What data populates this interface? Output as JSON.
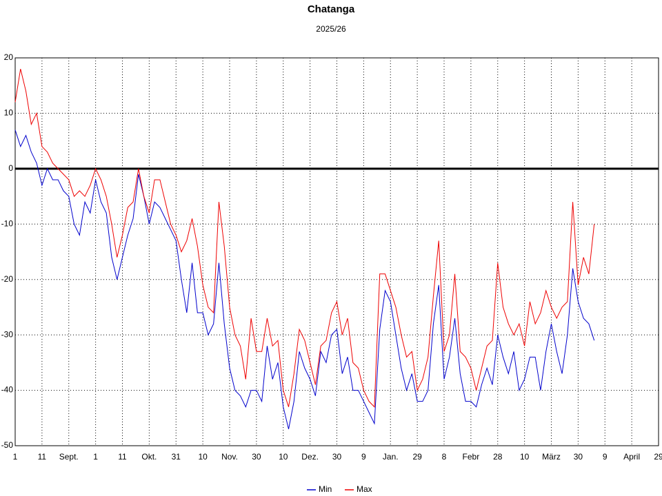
{
  "chart_data": {
    "type": "line",
    "title": "Chatanga",
    "subtitle": "2025/26",
    "x": [
      0,
      2,
      4,
      6,
      8,
      10,
      12,
      14,
      16,
      18,
      20,
      22,
      24,
      26,
      28,
      30,
      32,
      34,
      36,
      38,
      40,
      42,
      44,
      46,
      48,
      50,
      52,
      54,
      56,
      58,
      60,
      62,
      64,
      66,
      68,
      70,
      72,
      74,
      76,
      78,
      80,
      82,
      84,
      86,
      88,
      90,
      92,
      94,
      96,
      98,
      100,
      102,
      104,
      106,
      108,
      110,
      112,
      114,
      116,
      118,
      120,
      122,
      124,
      126,
      128,
      130,
      132,
      134,
      136,
      138,
      140,
      142,
      144,
      146,
      148,
      150,
      152,
      154,
      156,
      158,
      160,
      162,
      164,
      166,
      168,
      170,
      172,
      174,
      176,
      178,
      180,
      182,
      184,
      186,
      188,
      190,
      192,
      194,
      196,
      198,
      200,
      202,
      204,
      206,
      208,
      210,
      212,
      214,
      216
    ],
    "series": [
      {
        "name": "Min",
        "color": "#0000cc",
        "values": [
          7,
          4,
          6,
          3,
          1,
          -3,
          0,
          -2,
          -2,
          -4,
          -5,
          -10,
          -12,
          -6,
          -8,
          -2,
          -6,
          -8,
          -16,
          -20,
          -16,
          -12,
          -9,
          -1,
          -5,
          -10,
          -6,
          -7,
          -9,
          -11,
          -13,
          -20,
          -26,
          -17,
          -26,
          -26,
          -30,
          -28,
          -17,
          -28,
          -36,
          -40,
          -41,
          -43,
          -40,
          -40,
          -42,
          -32,
          -38,
          -35,
          -43,
          -47,
          -42,
          -33,
          -36,
          -38,
          -41,
          -33,
          -35,
          -30,
          -29,
          -37,
          -34,
          -40,
          -40,
          -42,
          -44,
          -46,
          -29,
          -22,
          -24,
          -30,
          -36,
          -40,
          -37,
          -42,
          -42,
          -40,
          -28,
          -21,
          -38,
          -34,
          -27,
          -37,
          -42,
          -42,
          -43,
          -39,
          -36,
          -39,
          -30,
          -34,
          -37,
          -33,
          -40,
          -38,
          -34,
          -34,
          -40,
          -33,
          -28,
          -33,
          -37,
          -30,
          -18,
          -24,
          -27,
          -28,
          -31
        ]
      },
      {
        "name": "Max",
        "color": "#ee0000",
        "values": [
          12,
          18,
          14,
          8,
          10,
          4,
          3,
          1,
          0,
          -1,
          -2,
          -5,
          -4,
          -5,
          -3,
          0,
          -2,
          -5,
          -10,
          -16,
          -12,
          -7,
          -6,
          0,
          -5,
          -8,
          -2,
          -2,
          -6,
          -10,
          -12,
          -15,
          -13,
          -9,
          -14,
          -21,
          -25,
          -26,
          -6,
          -14,
          -25,
          -30,
          -32,
          -38,
          -27,
          -33,
          -33,
          -27,
          -32,
          -31,
          -40,
          -43,
          -37,
          -29,
          -31,
          -35,
          -39,
          -32,
          -31,
          -26,
          -24,
          -30,
          -27,
          -35,
          -36,
          -40,
          -42,
          -43,
          -19,
          -19,
          -22,
          -25,
          -30,
          -34,
          -33,
          -40,
          -38,
          -34,
          -23,
          -13,
          -33,
          -30,
          -19,
          -33,
          -34,
          -36,
          -40,
          -36,
          -32,
          -31,
          -17,
          -25,
          -28,
          -30,
          -28,
          -32,
          -24,
          -28,
          -26,
          -22,
          -25,
          -27,
          -25,
          -24,
          -6,
          -21,
          -16,
          -19,
          -10
        ]
      }
    ],
    "xlim": [
      0,
      240
    ],
    "xticks": [
      {
        "value": 0,
        "label": "1"
      },
      {
        "value": 10,
        "label": "11"
      },
      {
        "value": 20,
        "label": "Sept."
      },
      {
        "value": 30,
        "label": "1"
      },
      {
        "value": 40,
        "label": "11"
      },
      {
        "value": 50,
        "label": "Okt."
      },
      {
        "value": 60,
        "label": "31"
      },
      {
        "value": 70,
        "label": "10"
      },
      {
        "value": 80,
        "label": "Nov."
      },
      {
        "value": 90,
        "label": "30"
      },
      {
        "value": 100,
        "label": "10"
      },
      {
        "value": 110,
        "label": "Dez."
      },
      {
        "value": 120,
        "label": "30"
      },
      {
        "value": 130,
        "label": "9"
      },
      {
        "value": 140,
        "label": "Jan."
      },
      {
        "value": 150,
        "label": "29"
      },
      {
        "value": 160,
        "label": "8"
      },
      {
        "value": 170,
        "label": "Febr"
      },
      {
        "value": 180,
        "label": "28"
      },
      {
        "value": 190,
        "label": "10"
      },
      {
        "value": 200,
        "label": "März"
      },
      {
        "value": 210,
        "label": "30"
      },
      {
        "value": 220,
        "label": "9"
      },
      {
        "value": 230,
        "label": "April"
      },
      {
        "value": 240,
        "label": "29"
      }
    ],
    "ylim": [
      -50,
      20
    ],
    "yticks": [
      -50,
      -40,
      -30,
      -20,
      -10,
      0,
      10,
      20
    ],
    "grid": true,
    "zero_line": true,
    "legend": "bottom"
  }
}
